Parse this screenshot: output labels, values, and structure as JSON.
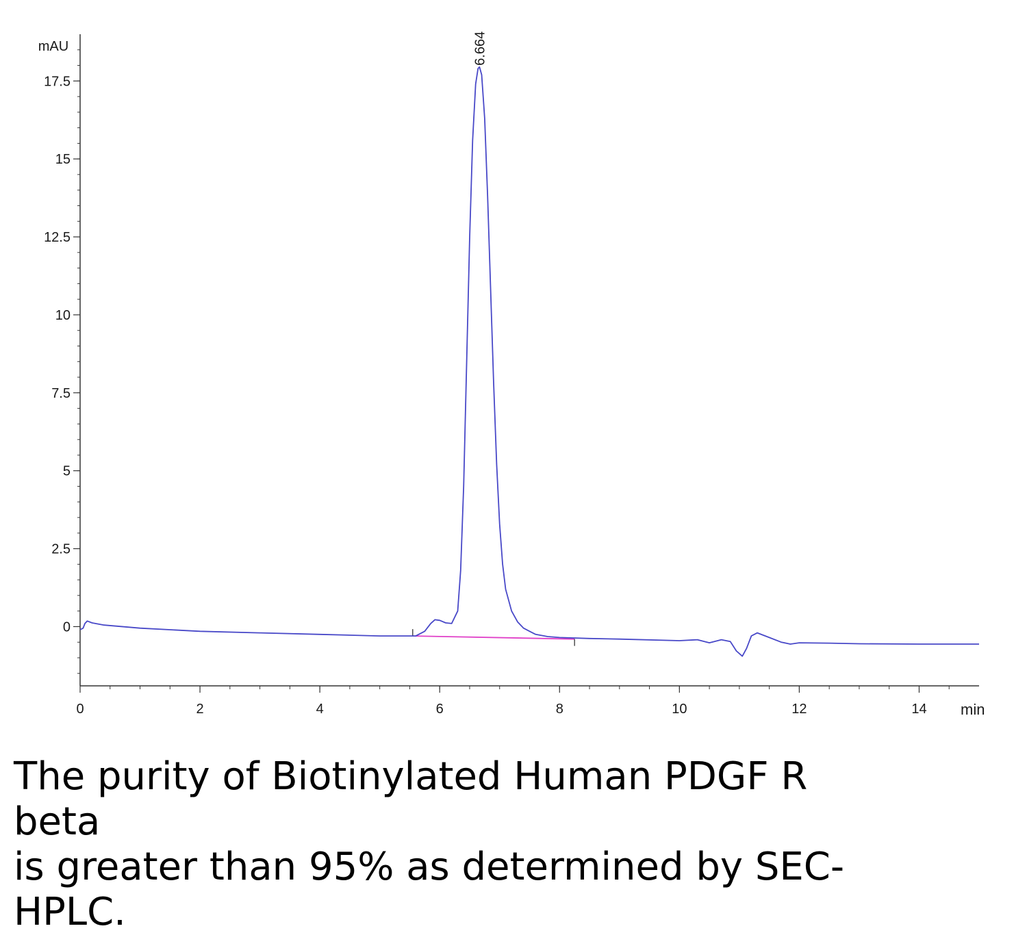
{
  "chart_data": {
    "type": "line",
    "title": "",
    "xlabel": "min",
    "ylabel": "mAU",
    "xlim": [
      0,
      15
    ],
    "ylim": [
      -1.9,
      19.0
    ],
    "x_ticks": [
      0,
      2,
      4,
      6,
      8,
      10,
      12,
      14
    ],
    "x_tick_labels": [
      "0",
      "2",
      "4",
      "6",
      "8",
      "10",
      "12",
      "14"
    ],
    "y_ticks": [
      0,
      2.5,
      5,
      7.5,
      10,
      12.5,
      15,
      17.5
    ],
    "y_tick_labels": [
      "0",
      "2.5",
      "5",
      "7.5",
      "10",
      "12.5",
      "15",
      "17.5"
    ],
    "grid": false,
    "peak_label": {
      "x": 6.664,
      "text": "6.664"
    },
    "integration_start": {
      "x": 5.55,
      "y": -0.3
    },
    "integration_end": {
      "x": 8.25,
      "y": -0.4
    },
    "series": [
      {
        "color": "#4848c8",
        "x": [
          0.0,
          0.05,
          0.08,
          0.12,
          0.2,
          0.4,
          1.0,
          2.0,
          3.0,
          4.0,
          5.0,
          5.6,
          5.75,
          5.85,
          5.92,
          6.0,
          6.1,
          6.2,
          6.3,
          6.35,
          6.4,
          6.45,
          6.5,
          6.55,
          6.6,
          6.64,
          6.664,
          6.7,
          6.75,
          6.8,
          6.85,
          6.9,
          6.95,
          7.0,
          7.05,
          7.1,
          7.2,
          7.3,
          7.4,
          7.5,
          7.6,
          7.8,
          8.0,
          8.5,
          9.0,
          10.0,
          10.3,
          10.5,
          10.7,
          10.85,
          10.95,
          11.05,
          11.12,
          11.2,
          11.3,
          11.5,
          11.7,
          11.85,
          12.0,
          12.5,
          13.0,
          14.0,
          15.0
        ],
        "y": [
          -0.1,
          -0.05,
          0.1,
          0.18,
          0.12,
          0.05,
          -0.05,
          -0.15,
          -0.2,
          -0.25,
          -0.3,
          -0.3,
          -0.15,
          0.1,
          0.22,
          0.2,
          0.12,
          0.1,
          0.5,
          1.8,
          4.5,
          8.5,
          12.5,
          15.6,
          17.4,
          17.9,
          17.95,
          17.7,
          16.3,
          13.8,
          10.8,
          7.8,
          5.2,
          3.3,
          2.0,
          1.2,
          0.5,
          0.15,
          -0.05,
          -0.15,
          -0.25,
          -0.32,
          -0.35,
          -0.38,
          -0.4,
          -0.45,
          -0.42,
          -0.52,
          -0.42,
          -0.48,
          -0.78,
          -0.95,
          -0.7,
          -0.3,
          -0.2,
          -0.35,
          -0.5,
          -0.56,
          -0.52,
          -0.53,
          -0.55,
          -0.56,
          -0.56
        ]
      }
    ]
  },
  "caption": "The purity of Biotinylated Human PDGF R beta\nis greater than 95% as determined by SEC-\nHPLC.",
  "colors": {
    "trace": "#4848c8",
    "baseline": "#e040c8",
    "axis": "#333333"
  }
}
